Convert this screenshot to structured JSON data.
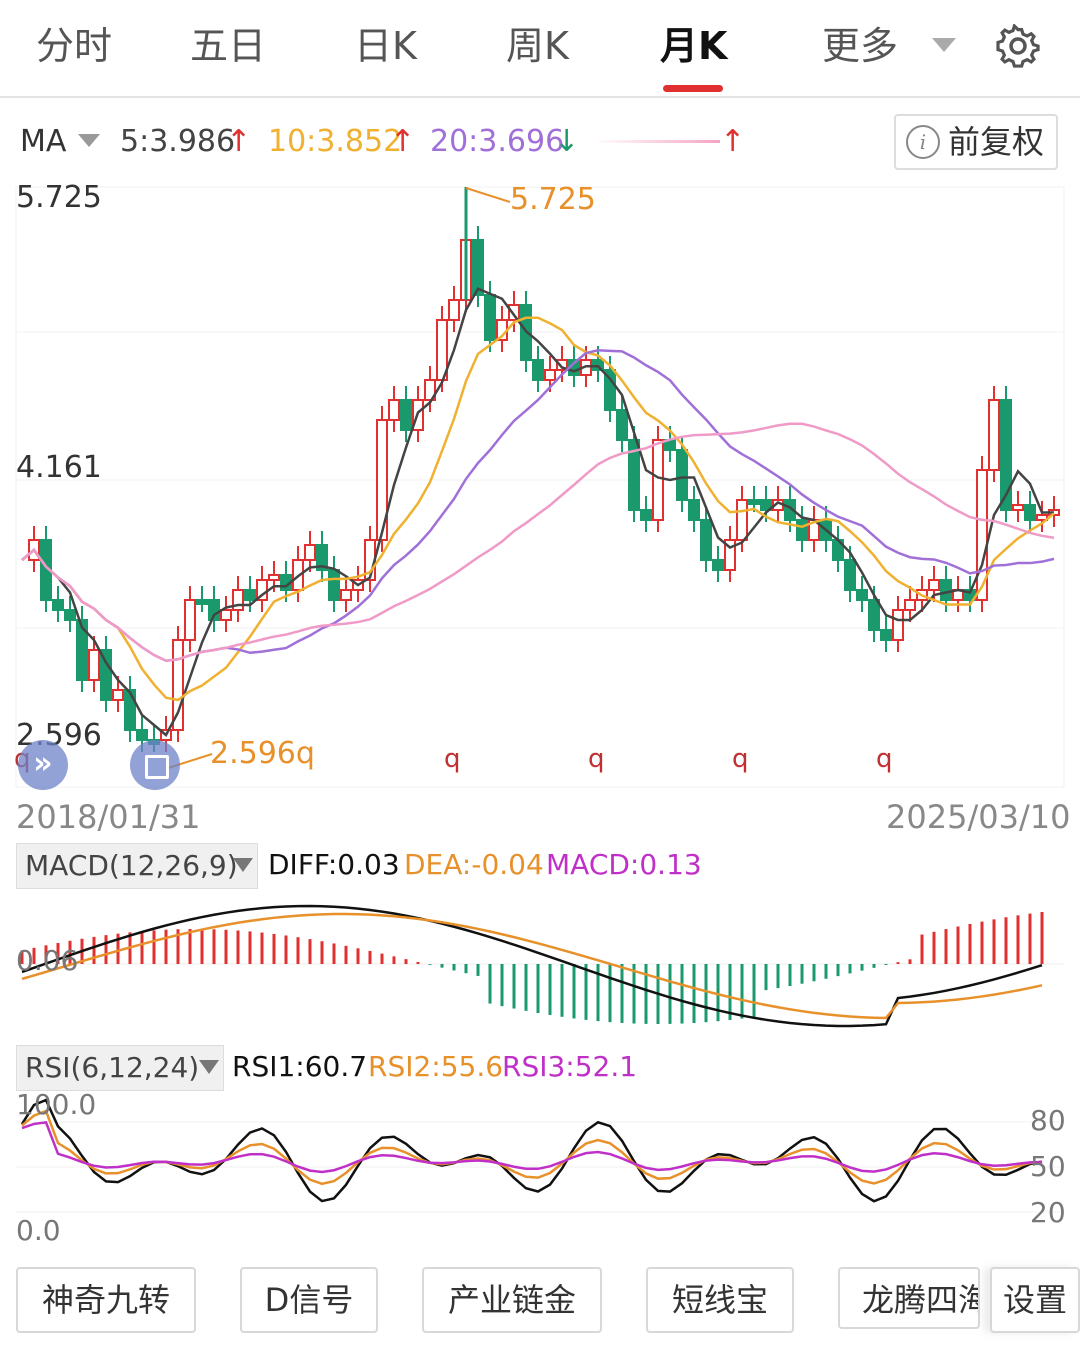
{
  "tabs": [
    {
      "label": "分时"
    },
    {
      "label": "五日"
    },
    {
      "label": "日K"
    },
    {
      "label": "周K"
    },
    {
      "label": "月K",
      "active": true
    },
    {
      "label": "更多"
    }
  ],
  "ma": {
    "label": "MA",
    "ma5": "5:3.986",
    "ma5_arrow": "↑",
    "ma10": "10:3.852",
    "ma10_arrow": "↑",
    "ma20": "20:3.696",
    "ma20_arrow": "↓",
    "extra_arrow": "↑",
    "fq_label": "前复权",
    "colors": {
      "ma5": "#444444",
      "ma10": "#f0b030",
      "ma20": "#a070d8",
      "ma_long": "#f09ac8",
      "up": "#e03030",
      "down": "#1a9a6c"
    }
  },
  "kline": {
    "price_high_label": "5.725",
    "price_mid_label": "4.161",
    "price_low_label": "2.596",
    "max_marker": "5.725",
    "min_marker": "2.596q",
    "q_marker": "q",
    "date_start": "2018/01/31",
    "date_end": "2025/03/10"
  },
  "macd": {
    "selector": "MACD(12,26,9)",
    "diff": "DIFF:0.03",
    "dea": "DEA:-0.04",
    "macd": "MACD:0.13",
    "axis_label": "0.06"
  },
  "rsi": {
    "selector": "RSI(6,12,24)",
    "rsi1": "RSI1:60.7",
    "rsi2": "RSI2:55.6",
    "rsi3": "RSI3:52.1",
    "top_label": "100.0",
    "bottom_label": "0.0",
    "right_labels": [
      "80",
      "50",
      "20"
    ]
  },
  "bottom_buttons": [
    "神奇九转",
    "D信号",
    "产业链金",
    "短线宝",
    "龙腾四海",
    "设置"
  ]
}
